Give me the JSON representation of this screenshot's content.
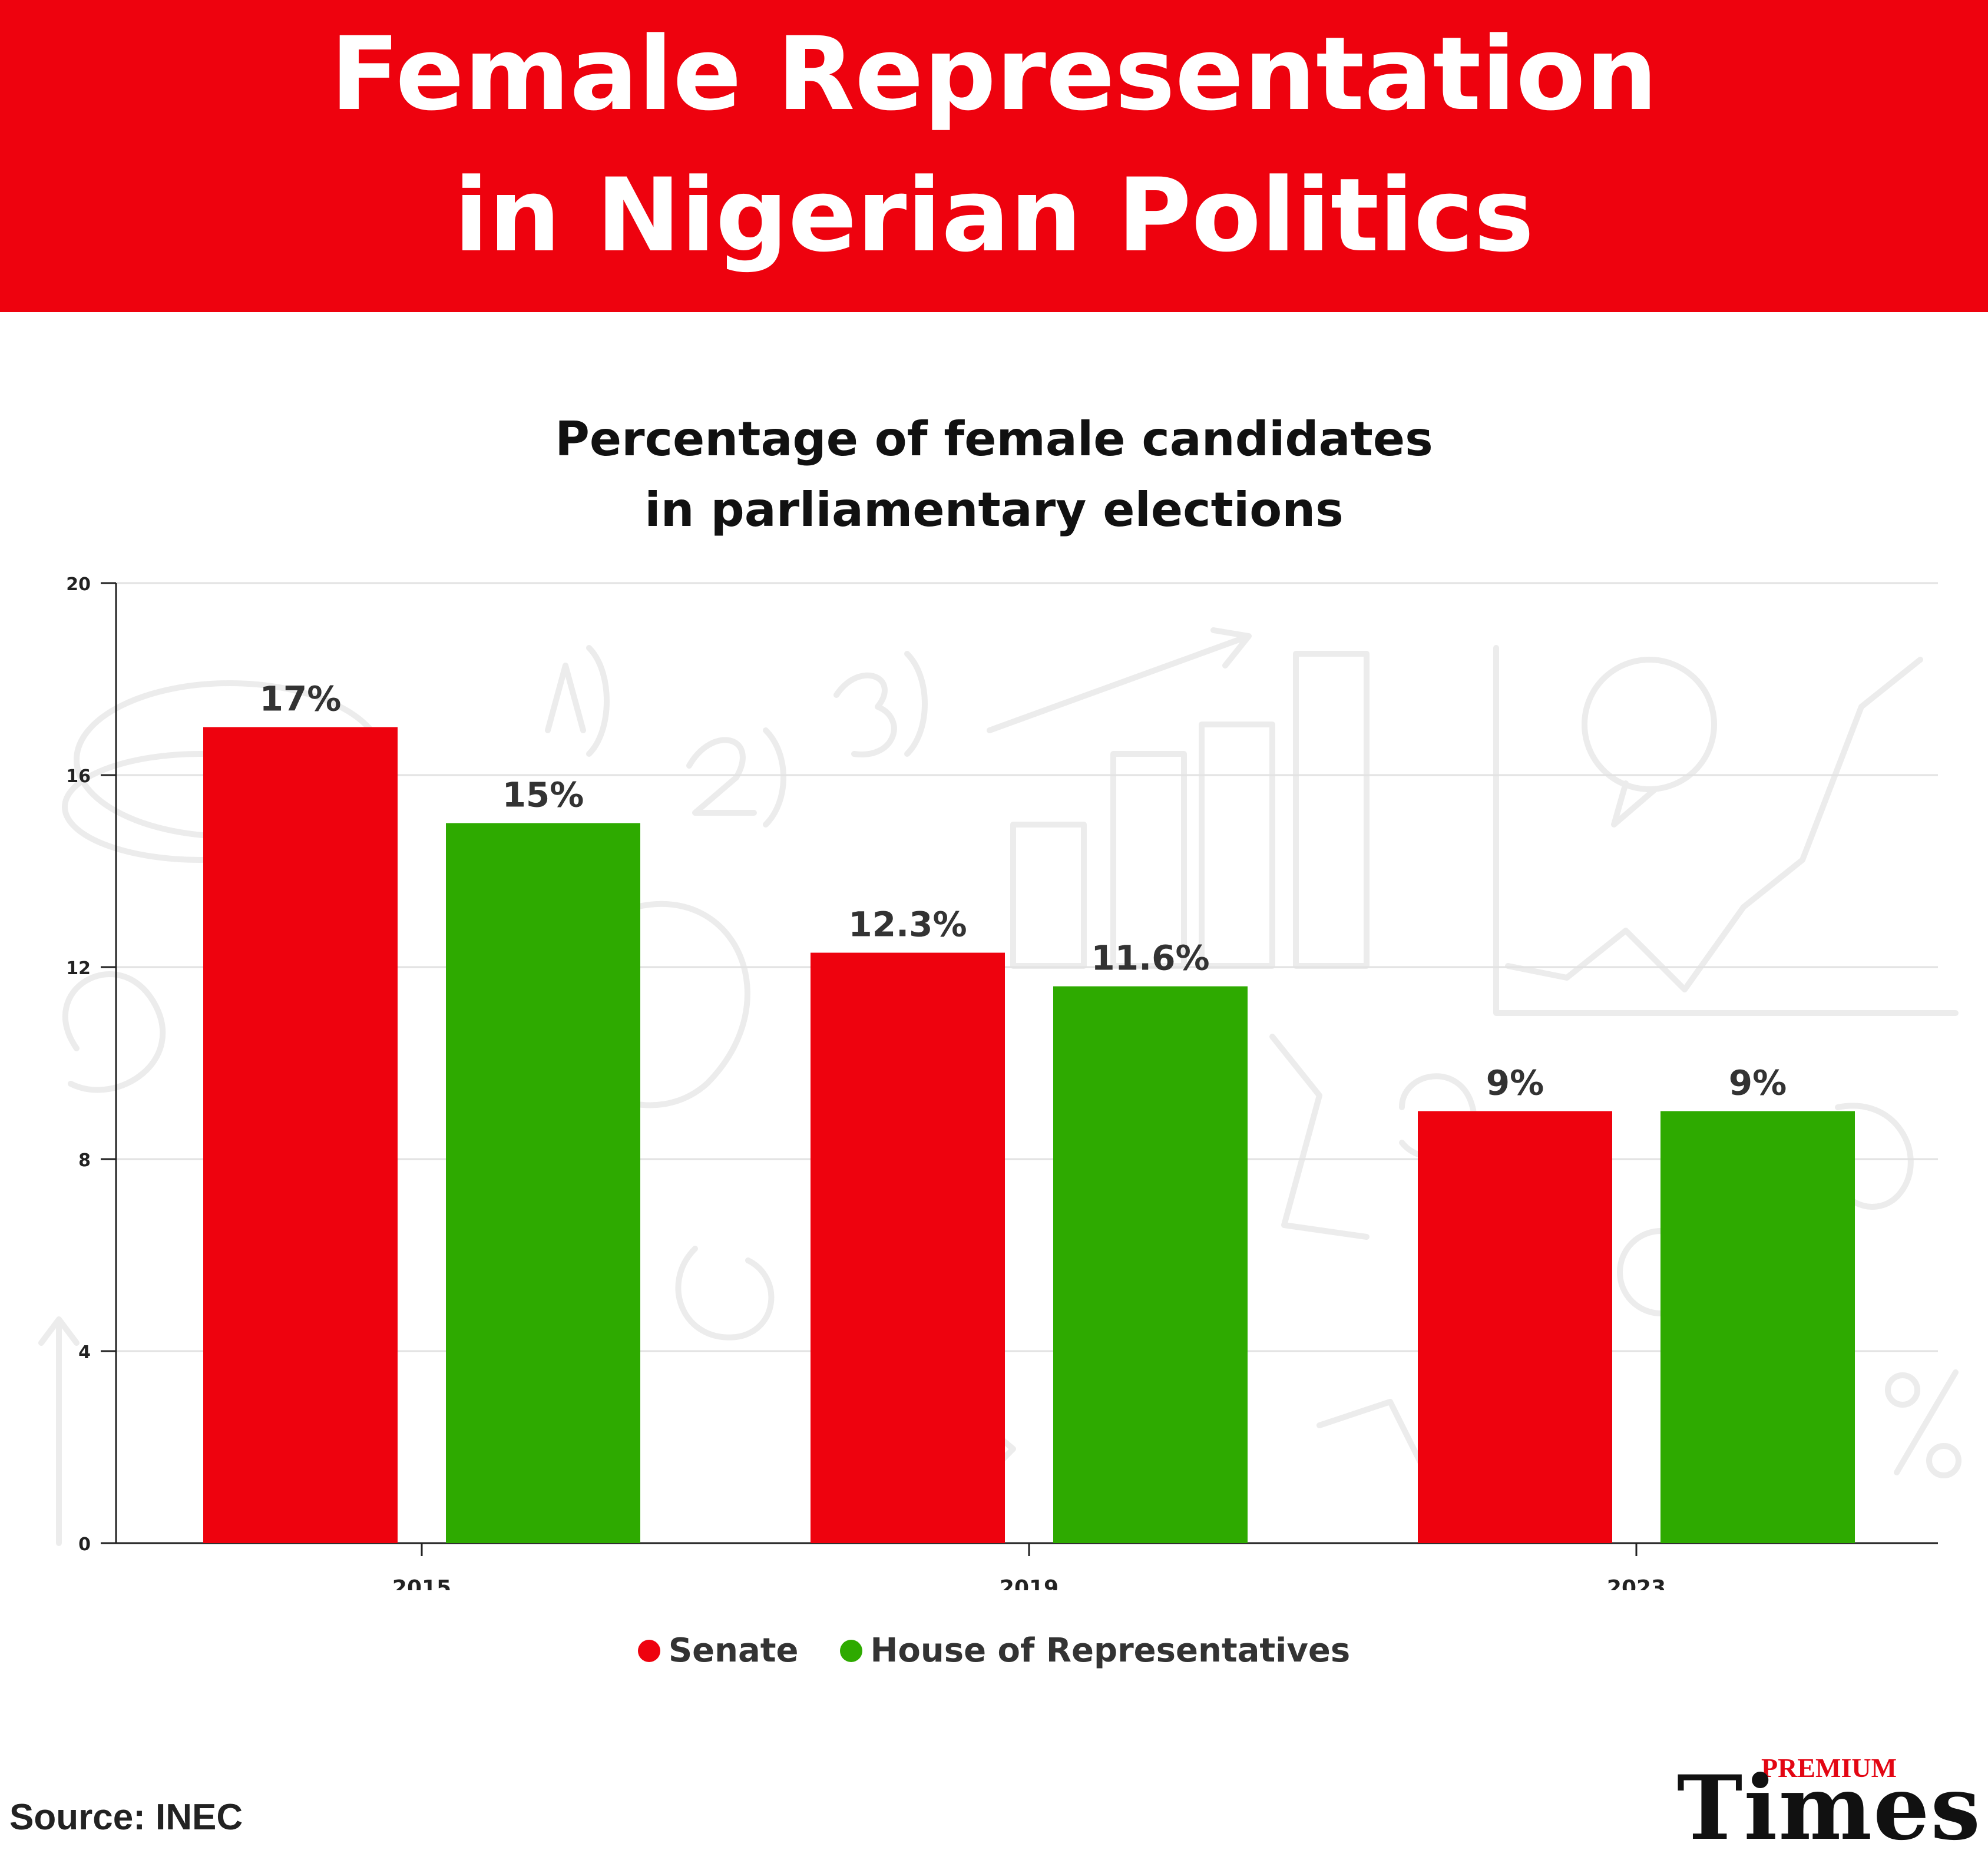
{
  "banner": {
    "line1": "Female Representation",
    "line2": "in Nigerian Politics",
    "color": "#ee020e"
  },
  "chart_data": {
    "type": "bar",
    "title_line1": "Percentage of female candidates",
    "title_line2": "in parliamentary elections",
    "categories": [
      "2015",
      "2019",
      "2023"
    ],
    "series": [
      {
        "name": "Senate",
        "color": "#ee020e",
        "values": [
          17,
          12.3,
          9
        ],
        "labels": [
          "17%",
          "12.3%",
          "9%"
        ]
      },
      {
        "name": "House of Representatives",
        "color": "#2eaa00",
        "values": [
          15,
          11.6,
          9
        ],
        "labels": [
          "15%",
          "11.6%",
          "9%"
        ]
      }
    ],
    "ylim": [
      0,
      20
    ],
    "yticks": [
      0,
      4,
      8,
      12,
      16,
      20
    ],
    "grid": true,
    "legend_position": "bottom"
  },
  "source": "Source: INEC",
  "logo": {
    "premium": "PREMIUM",
    "times": "Times"
  }
}
